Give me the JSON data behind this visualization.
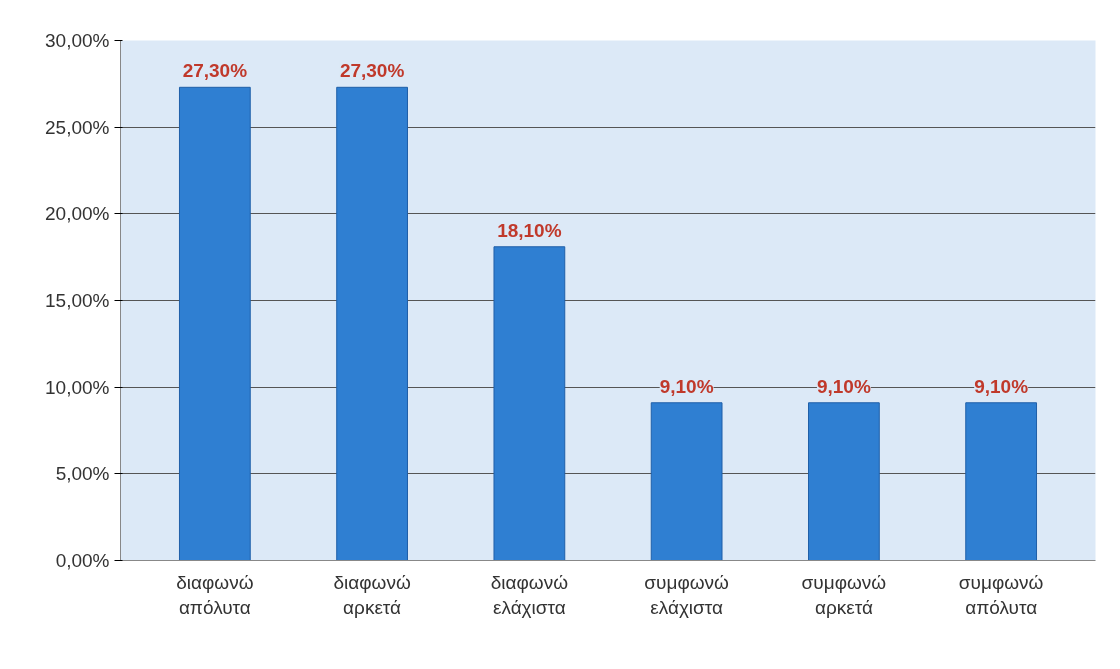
{
  "chart_data": {
    "type": "bar",
    "categories": [
      "διαφωνώ απόλυτα",
      "διαφωνώ αρκετά",
      "διαφωνώ ελάχιστα",
      "συμφωνώ ελάχιστα",
      "συμφωνώ αρκετά",
      "συμφωνώ απόλυτα"
    ],
    "values": [
      27.3,
      27.3,
      18.1,
      9.1,
      9.1,
      9.1
    ],
    "value_labels": [
      "27,30%",
      "27,30%",
      "18,10%",
      "9,10%",
      "9,10%",
      "9,10%"
    ],
    "color": "#2f7fd2",
    "ylim": [
      0,
      30
    ],
    "yticks": [
      {
        "value": 0,
        "label": "0,00%"
      },
      {
        "value": 5,
        "label": "5,00%"
      },
      {
        "value": 10,
        "label": "10,00%"
      },
      {
        "value": 15,
        "label": "15,00%"
      },
      {
        "value": 20,
        "label": "20,00%"
      },
      {
        "value": 25,
        "label": "25,00%"
      },
      {
        "value": 30,
        "label": "30,00%"
      }
    ],
    "grid": "y"
  }
}
